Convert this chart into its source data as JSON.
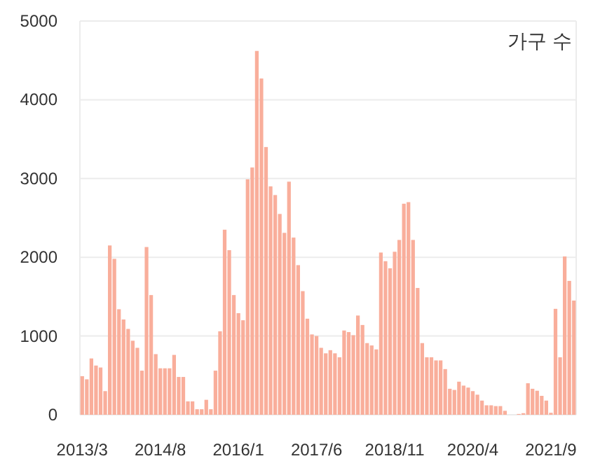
{
  "chart_data": {
    "type": "bar",
    "ylabel": "가구 수",
    "categories": [
      "2013/3",
      null,
      null,
      null,
      null,
      null,
      null,
      null,
      null,
      null,
      null,
      null,
      null,
      null,
      null,
      null,
      null,
      "2014/8",
      null,
      null,
      null,
      null,
      null,
      null,
      null,
      null,
      null,
      null,
      null,
      null,
      null,
      null,
      null,
      null,
      "2016/1",
      null,
      null,
      null,
      null,
      null,
      null,
      null,
      null,
      null,
      null,
      null,
      null,
      null,
      null,
      null,
      null,
      "2017/6",
      null,
      null,
      null,
      null,
      null,
      null,
      null,
      null,
      null,
      null,
      null,
      null,
      null,
      null,
      null,
      null,
      "2018/11",
      null,
      null,
      null,
      null,
      null,
      null,
      null,
      null,
      null,
      null,
      null,
      null,
      null,
      null,
      null,
      null,
      "2020/4",
      null,
      null,
      null,
      null,
      null,
      null,
      null,
      null,
      null,
      null,
      null,
      null,
      null,
      null,
      null,
      null,
      "2021/9",
      null,
      null,
      null,
      null,
      null
    ],
    "series": [
      {
        "color": "#f9ae9b",
        "values": [
          490,
          450,
          715,
          625,
          600,
          300,
          2150,
          1980,
          1340,
          1210,
          1090,
          940,
          850,
          560,
          2130,
          1520,
          770,
          590,
          590,
          590,
          760,
          480,
          480,
          170,
          170,
          70,
          70,
          190,
          70,
          560,
          1060,
          2350,
          2090,
          1520,
          1290,
          1200,
          2990,
          3140,
          4620,
          4270,
          3400,
          2900,
          2790,
          2550,
          2310,
          2960,
          2250,
          1900,
          1570,
          1220,
          1020,
          1000,
          850,
          780,
          820,
          780,
          730,
          1070,
          1050,
          1010,
          1260,
          1140,
          910,
          880,
          830,
          2060,
          1950,
          1860,
          2070,
          2220,
          2680,
          2700,
          2220,
          1610,
          910,
          730,
          730,
          690,
          690,
          580,
          330,
          315,
          420,
          370,
          345,
          300,
          255,
          180,
          120,
          120,
          110,
          110,
          50,
          0,
          0,
          10,
          20,
          400,
          330,
          305,
          240,
          180,
          25,
          1345,
          730,
          2010,
          1700,
          1450
        ]
      }
    ],
    "ylim": [
      0,
      5000
    ],
    "yticks": [
      0,
      1000,
      2000,
      3000,
      4000,
      5000
    ],
    "grid": "y"
  }
}
